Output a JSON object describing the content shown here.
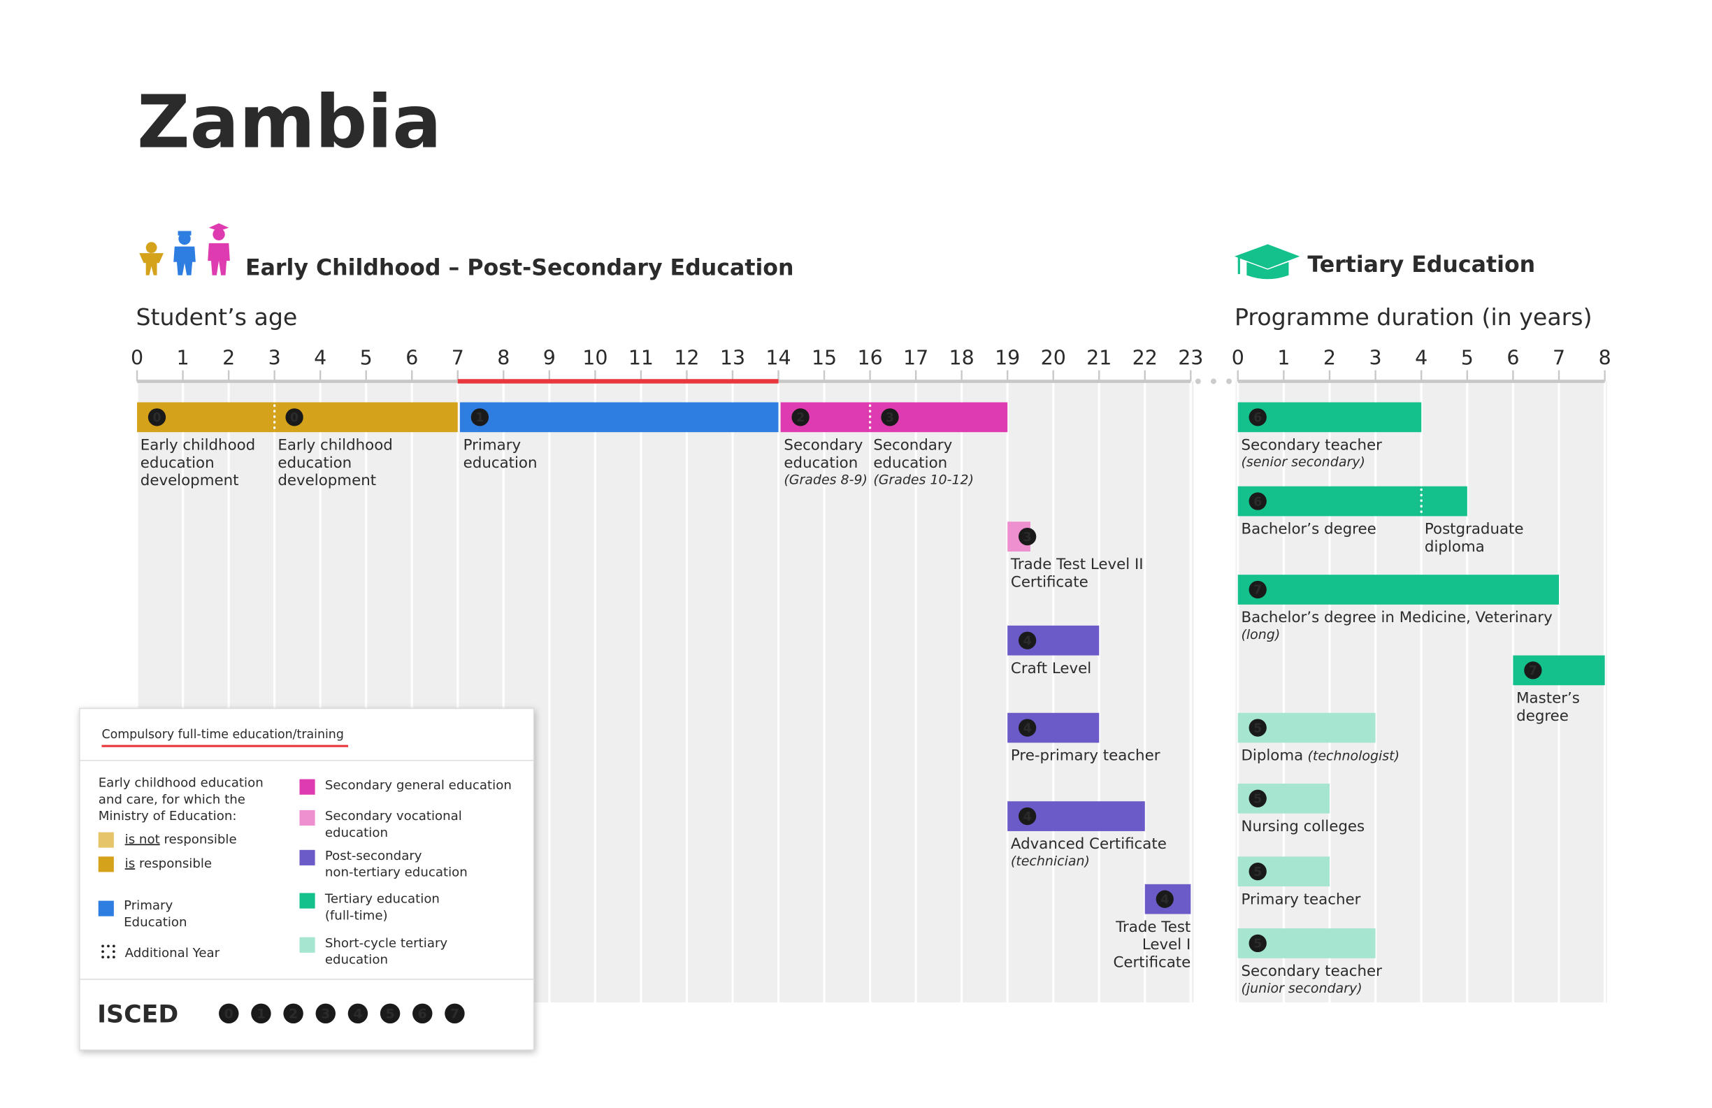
{
  "title": "Zambia",
  "left": {
    "heading": "Early Childhood – Post-Secondary Education",
    "axis_label": "Student’s age",
    "ticks": [
      0,
      1,
      2,
      3,
      4,
      5,
      6,
      7,
      8,
      9,
      10,
      11,
      12,
      13,
      14,
      15,
      16,
      17,
      18,
      19,
      20,
      21,
      22,
      23
    ],
    "compulsory": [
      7,
      14
    ],
    "rows": [
      {
        "segments": [
          {
            "isced": 0,
            "start": 0,
            "end": 3,
            "color": "#d4a21b",
            "label": [
              "Early childhood",
              "education",
              "development"
            ]
          },
          {
            "isced": 0,
            "start": 3,
            "end": 7,
            "color": "#d4a21b",
            "label": [
              "Early childhood",
              "education",
              "development"
            ]
          },
          {
            "isced": 1,
            "start": 7,
            "end": 14,
            "color": "#2e7de1",
            "label": [
              "Primary",
              "education"
            ]
          },
          {
            "isced": 2,
            "start": 14,
            "end": 16,
            "color": "#df3bb0",
            "label": [
              "Secondary",
              "education"
            ],
            "note": "(Grades 8-9)"
          },
          {
            "isced": 3,
            "start": 16,
            "end": 19,
            "color": "#df3bb0",
            "label": [
              "Secondary",
              "education"
            ],
            "note": "(Grades 10-12)"
          }
        ]
      },
      {
        "segments": [
          {
            "isced": 3,
            "start": 19,
            "end": 19.5,
            "color": "#ee8fcf",
            "label": [
              "Trade Test Level II",
              "Certificate"
            ]
          }
        ]
      },
      {
        "segments": [
          {
            "isced": 4,
            "start": 19,
            "end": 21,
            "color": "#6a5bc8",
            "label": [
              "Craft Level"
            ]
          }
        ]
      },
      {
        "segments": [
          {
            "isced": 4,
            "start": 19,
            "end": 21,
            "color": "#6a5bc8",
            "label": [
              "Pre-primary teacher"
            ]
          }
        ]
      },
      {
        "segments": [
          {
            "isced": 4,
            "start": 19,
            "end": 22,
            "color": "#6a5bc8",
            "label": [
              "Advanced Certificate"
            ],
            "note": "(technician)"
          }
        ]
      },
      {
        "segments": [
          {
            "isced": 4,
            "start": 22,
            "end": 23,
            "color": "#6a5bc8",
            "label": [
              "Trade Test",
              "Level I",
              "Certificate"
            ]
          }
        ]
      }
    ]
  },
  "right": {
    "heading": "Tertiary Education",
    "axis_label": "Programme duration (in years)",
    "ticks": [
      0,
      1,
      2,
      3,
      4,
      5,
      6,
      7,
      8
    ],
    "rows": [
      {
        "segments": [
          {
            "isced": 6,
            "start": 0,
            "end": 4,
            "color": "#14c08b",
            "label": [
              "Secondary teacher"
            ],
            "note": "(senior secondary)"
          }
        ]
      },
      {
        "segments": [
          {
            "isced": 6,
            "start": 0,
            "end": 4,
            "color": "#14c08b",
            "label": [
              "Bachelor’s degree"
            ]
          },
          {
            "start": 4,
            "end": 5,
            "color": "#14c08b",
            "label": [
              "Postgraduate",
              "diploma"
            ]
          }
        ]
      },
      {
        "segments": [
          {
            "isced": 7,
            "start": 0,
            "end": 7,
            "color": "#14c08b",
            "label": [
              "Bachelor’s degree in Medicine, Veterinary"
            ],
            "note": "(long)"
          }
        ]
      },
      {
        "segments": [
          {
            "isced": 7,
            "start": 6,
            "end": 8,
            "color": "#14c08b",
            "label": [
              "Master’s",
              "degree"
            ]
          }
        ]
      },
      {
        "segments": [
          {
            "isced": 5,
            "start": 0,
            "end": 3,
            "color": "#a6e6d1",
            "label": [
              "Diploma"
            ],
            "note": "(technologist)"
          }
        ]
      },
      {
        "segments": [
          {
            "isced": 5,
            "start": 0,
            "end": 2,
            "color": "#a6e6d1",
            "label": [
              "Nursing colleges"
            ]
          }
        ]
      },
      {
        "segments": [
          {
            "isced": 5,
            "start": 0,
            "end": 2,
            "color": "#a6e6d1",
            "label": [
              "Primary teacher"
            ]
          }
        ]
      },
      {
        "segments": [
          {
            "isced": 5,
            "start": 0,
            "end": 3,
            "color": "#a6e6d1",
            "label": [
              "Secondary teacher"
            ],
            "note": "(junior secondary)"
          }
        ]
      }
    ]
  },
  "legend": {
    "title": "Compulsory full-time education/training",
    "ece_intro": [
      "Early childhood education",
      "and care, for which the",
      "Ministry of Education:"
    ],
    "ece_items": [
      {
        "underlined": "is not",
        "text": " responsible",
        "color": "#e6c46a"
      },
      {
        "underlined": "is",
        "text": " responsible",
        "color": "#d4a21b"
      }
    ],
    "primary": {
      "label": [
        "Primary",
        "Education"
      ],
      "color": "#2e7de1"
    },
    "additional_year": "Additional Year",
    "items": [
      {
        "label": [
          "Secondary general education"
        ],
        "color": "#df3bb0"
      },
      {
        "label": [
          "Secondary vocational",
          "education"
        ],
        "color": "#ee8fcf"
      },
      {
        "label": [
          "Post-secondary",
          "non-tertiary education"
        ],
        "color": "#6a5bc8"
      },
      {
        "label": [
          "Tertiary education",
          "(full-time)"
        ],
        "color": "#14c08b"
      },
      {
        "label": [
          "Short-cycle tertiary",
          "education"
        ],
        "color": "#a6e6d1"
      }
    ],
    "isced_title": "ISCED",
    "isced_levels": [
      0,
      1,
      2,
      3,
      4,
      5,
      6,
      7
    ]
  }
}
